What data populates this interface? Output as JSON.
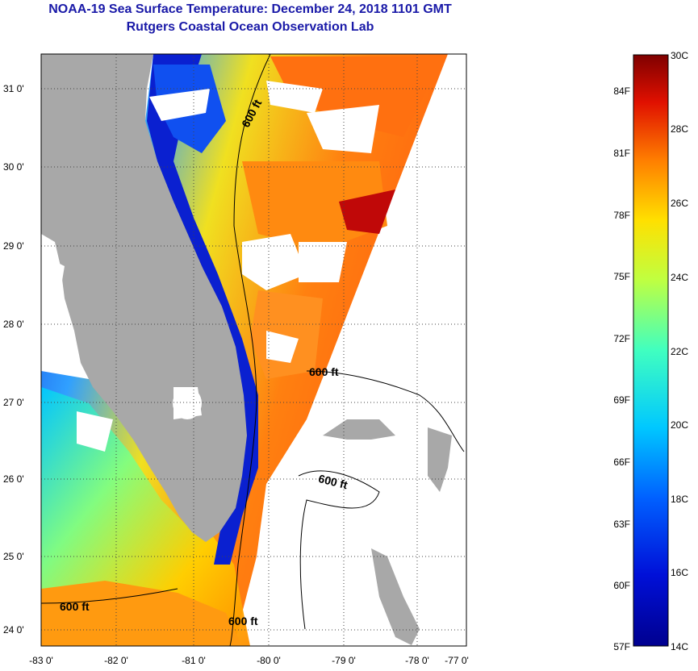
{
  "title": {
    "line1": "NOAA-19 Sea Surface Temperature:  December 24, 2018 1101 GMT",
    "line2": "Rutgers Coastal Ocean Observation Lab"
  },
  "map": {
    "lat_labels": [
      "31 0'",
      "30 0'",
      "29 0'",
      "28 0'",
      "27 0'",
      "26 0'",
      "25 0'",
      "24 0'"
    ],
    "lon_labels": [
      "-83 0'",
      "-82 0'",
      "-81 0'",
      "-80 0'",
      "-79 0'",
      "-78 0'",
      "-77 0'"
    ],
    "contour_label": "600 ft"
  },
  "colorbar": {
    "celsius_labels": [
      "30C",
      "28C",
      "26C",
      "24C",
      "22C",
      "20C",
      "18C",
      "16C",
      "14C"
    ],
    "fahrenheit_labels": [
      "84F",
      "81F",
      "78F",
      "75F",
      "72F",
      "69F",
      "66F",
      "63F",
      "60F",
      "57F"
    ]
  },
  "colors": {
    "title": "#1a1aa8",
    "land": "#a8a8a8",
    "cold": "#0a0a9e",
    "warm": "#f07a10",
    "hot": "#8a0a0a"
  }
}
